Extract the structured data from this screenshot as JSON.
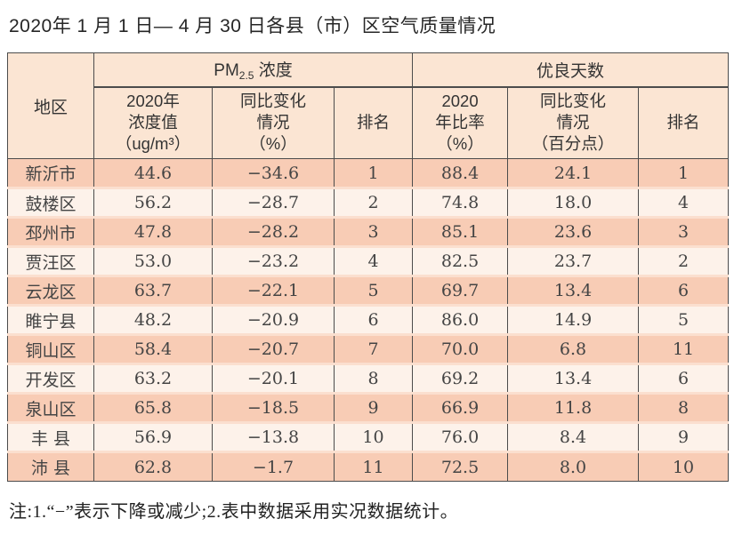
{
  "title": "2020年 1 月 1 日— 4 月 30 日各县（市）区空气质量情况",
  "note": "注:1.“−”表示下降或减少;2.表中数据采用实况数据统计。",
  "colors": {
    "header_bg": "#fbe5d3",
    "row_odd_bg": "#f8ccb5",
    "row_even_bg": "#fdf2ea",
    "row_gap": "#fbdfcf",
    "border": "#4c4c4c"
  },
  "table": {
    "header": {
      "region": "地区",
      "pm_group": {
        "prefix": "PM",
        "sub": "2.5",
        "suffix": " 浓度"
      },
      "good_group": "优良天数",
      "sub": [
        "2020年\n浓度值\n（ug/m³）",
        "同比变化\n情况\n（%）",
        "排名",
        "2020\n年比率\n（%）",
        "同比变化\n情况\n（百分点）",
        "排名"
      ]
    },
    "rows": [
      {
        "region": "新沂市",
        "pm_value": "44.6",
        "pm_change": "−34.6",
        "pm_rank": "1",
        "good_ratio": "88.4",
        "good_change": "24.1",
        "good_rank": "1"
      },
      {
        "region": "鼓楼区",
        "pm_value": "56.2",
        "pm_change": "−28.7",
        "pm_rank": "2",
        "good_ratio": "74.8",
        "good_change": "18.0",
        "good_rank": "4"
      },
      {
        "region": "邳州市",
        "pm_value": "47.8",
        "pm_change": "−28.2",
        "pm_rank": "3",
        "good_ratio": "85.1",
        "good_change": "23.6",
        "good_rank": "3"
      },
      {
        "region": "贾汪区",
        "pm_value": "53.0",
        "pm_change": "−23.2",
        "pm_rank": "4",
        "good_ratio": "82.5",
        "good_change": "23.7",
        "good_rank": "2"
      },
      {
        "region": "云龙区",
        "pm_value": "63.7",
        "pm_change": "−22.1",
        "pm_rank": "5",
        "good_ratio": "69.7",
        "good_change": "13.4",
        "good_rank": "6"
      },
      {
        "region": "睢宁县",
        "pm_value": "48.2",
        "pm_change": "−20.9",
        "pm_rank": "6",
        "good_ratio": "86.0",
        "good_change": "14.9",
        "good_rank": "5"
      },
      {
        "region": "铜山区",
        "pm_value": "58.4",
        "pm_change": "−20.7",
        "pm_rank": "7",
        "good_ratio": "70.0",
        "good_change": "6.8",
        "good_rank": "11"
      },
      {
        "region": "开发区",
        "pm_value": "63.2",
        "pm_change": "−20.1",
        "pm_rank": "8",
        "good_ratio": "69.2",
        "good_change": "13.4",
        "good_rank": "6"
      },
      {
        "region": "泉山区",
        "pm_value": "65.8",
        "pm_change": "−18.5",
        "pm_rank": "9",
        "good_ratio": "66.9",
        "good_change": "11.8",
        "good_rank": "8"
      },
      {
        "region": "丰 县",
        "pm_value": "56.9",
        "pm_change": "−13.8",
        "pm_rank": "10",
        "good_ratio": "76.0",
        "good_change": "8.4",
        "good_rank": "9"
      },
      {
        "region": "沛 县",
        "pm_value": "62.8",
        "pm_change": "−1.7",
        "pm_rank": "11",
        "good_ratio": "72.5",
        "good_change": "8.0",
        "good_rank": "10"
      }
    ]
  },
  "chart_data": {
    "type": "table",
    "title": "2020年1月1日—4月30日各县（市）区空气质量情况",
    "columns": [
      "地区",
      "PM2.5浓度 2020年浓度值（ug/m³）",
      "PM2.5浓度 同比变化情况（%）",
      "PM2.5浓度 排名",
      "优良天数 2020年比率（%）",
      "优良天数 同比变化情况（百分点）",
      "优良天数 排名"
    ],
    "rows": [
      [
        "新沂市",
        44.6,
        -34.6,
        1,
        88.4,
        24.1,
        1
      ],
      [
        "鼓楼区",
        56.2,
        -28.7,
        2,
        74.8,
        18.0,
        4
      ],
      [
        "邳州市",
        47.8,
        -28.2,
        3,
        85.1,
        23.6,
        3
      ],
      [
        "贾汪区",
        53.0,
        -23.2,
        4,
        82.5,
        23.7,
        2
      ],
      [
        "云龙区",
        63.7,
        -22.1,
        5,
        69.7,
        13.4,
        6
      ],
      [
        "睢宁县",
        48.2,
        -20.9,
        6,
        86.0,
        14.9,
        5
      ],
      [
        "铜山区",
        58.4,
        -20.7,
        7,
        70.0,
        6.8,
        11
      ],
      [
        "开发区",
        63.2,
        -20.1,
        8,
        69.2,
        13.4,
        6
      ],
      [
        "泉山区",
        65.8,
        -18.5,
        9,
        66.9,
        11.8,
        8
      ],
      [
        "丰县",
        56.9,
        -13.8,
        10,
        76.0,
        8.4,
        9
      ],
      [
        "沛县",
        62.8,
        -1.7,
        11,
        72.5,
        8.0,
        10
      ]
    ],
    "footnote": "注:1.“−”表示下降或减少;2.表中数据采用实况数据统计。"
  }
}
